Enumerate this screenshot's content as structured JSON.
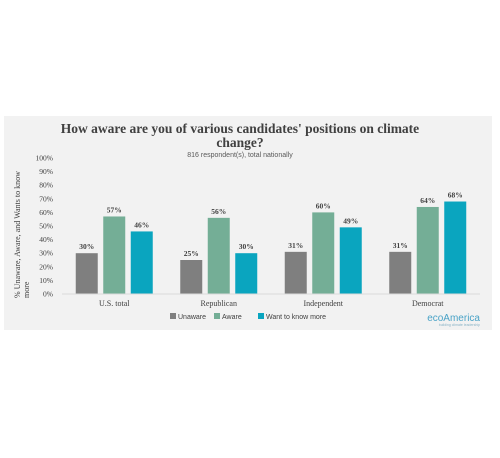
{
  "chart_data": {
    "type": "bar",
    "title_line1": "How aware are you of various candidates' positions on climate",
    "title_line2": "change?",
    "subtitle": "816 respondent(s), total nationally",
    "ylabel_line1": "% Unaware, Aware, and Wants to know",
    "ylabel_line2": "more",
    "ylim": [
      0,
      100
    ],
    "yticks": [
      "0%",
      "10%",
      "20%",
      "30%",
      "40%",
      "50%",
      "60%",
      "70%",
      "80%",
      "90%",
      "100%"
    ],
    "categories": [
      "U.S. total",
      "Republican",
      "Independent",
      "Democrat"
    ],
    "series": [
      {
        "name": "Unaware",
        "color": "#7f7f7f",
        "values": [
          30,
          25,
          31,
          31
        ],
        "labels": [
          "30%",
          "25%",
          "31%",
          "31%"
        ]
      },
      {
        "name": "Aware",
        "color": "#74ae96",
        "values": [
          57,
          56,
          60,
          64
        ],
        "labels": [
          "57%",
          "56%",
          "60%",
          "64%"
        ]
      },
      {
        "name": "Want to know more",
        "color": "#0aa5bf",
        "values": [
          46,
          30,
          49,
          68
        ],
        "labels": [
          "46%",
          "30%",
          "49%",
          "68%"
        ]
      }
    ],
    "grid": false,
    "legend_position": "bottom"
  },
  "brand": {
    "name": "ecoAmerica",
    "tagline": "building climate leadership"
  }
}
